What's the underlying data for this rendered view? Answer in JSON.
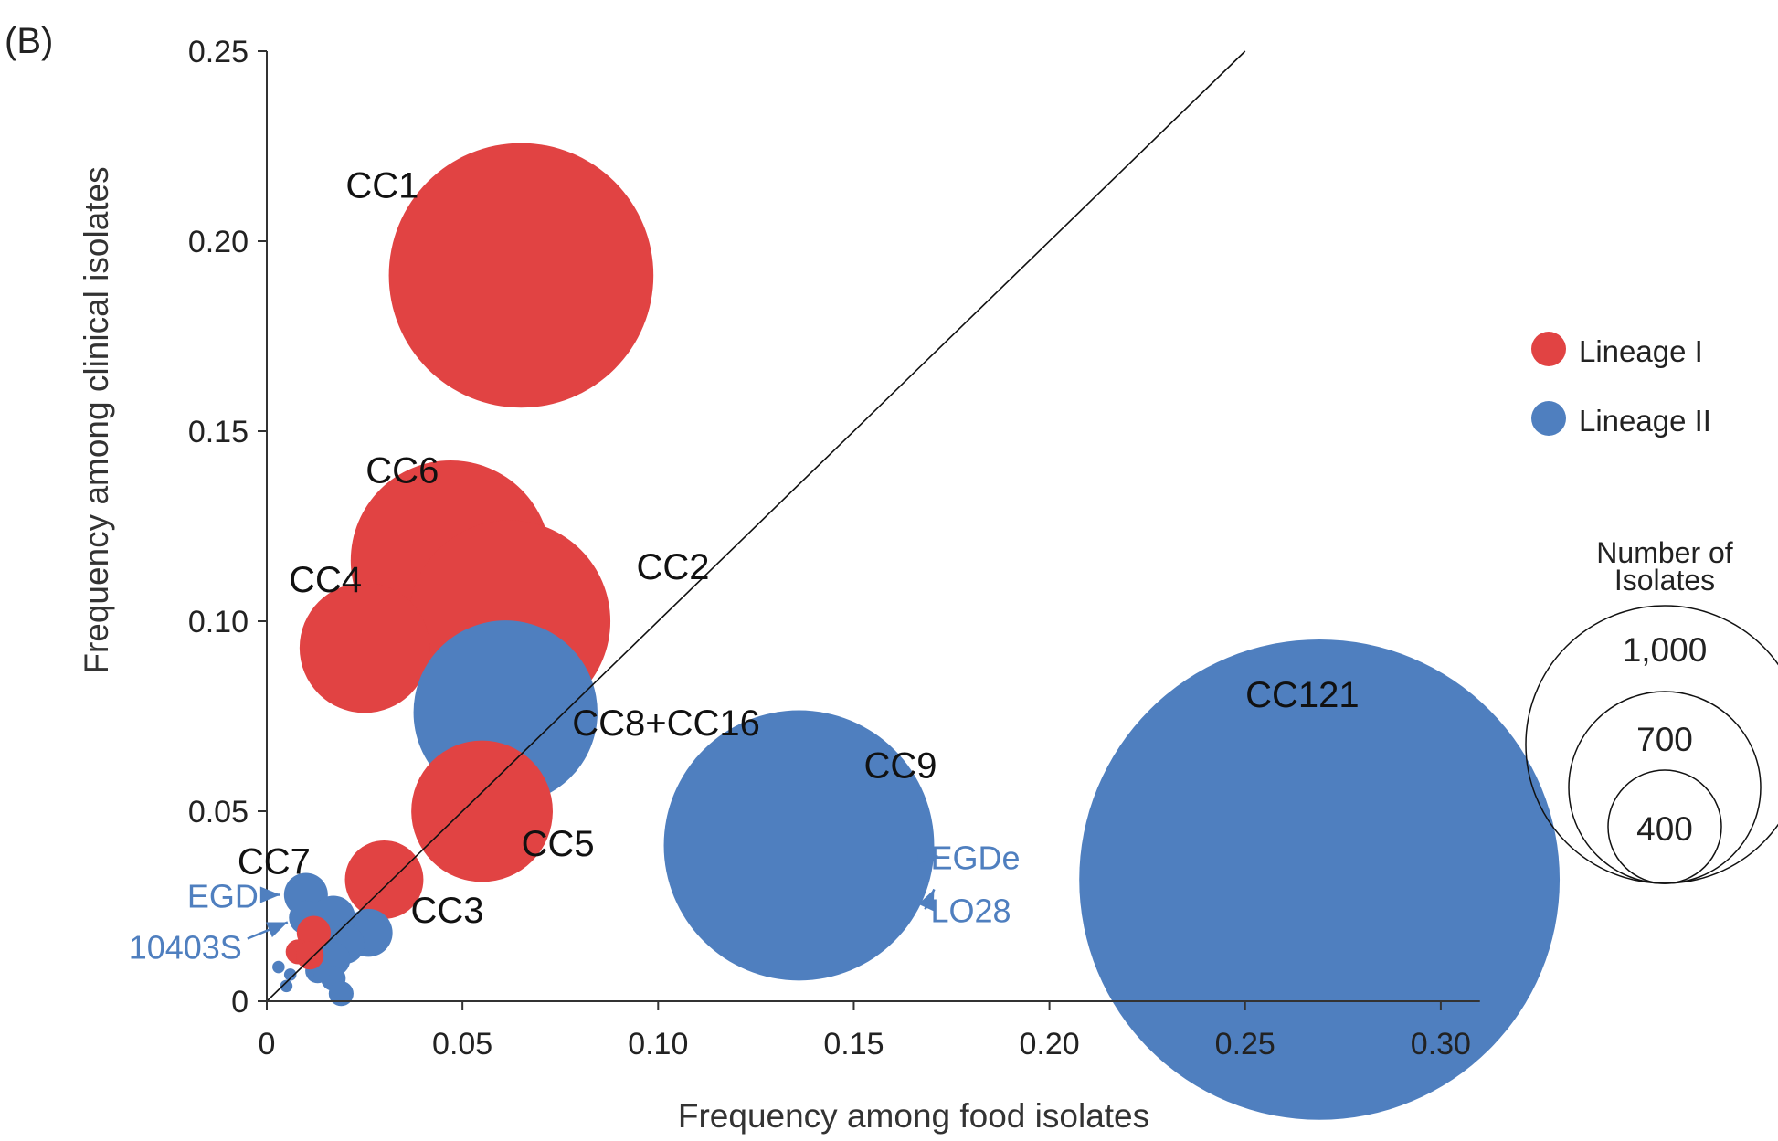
{
  "panel_label": "(B)",
  "chart_data": {
    "type": "scatter",
    "subtype": "bubble",
    "title": "",
    "xlabel": "Frequency among food isolates",
    "ylabel": "Frequency among clinical isolates",
    "xlim": [
      0,
      0.31
    ],
    "ylim": [
      0,
      0.25
    ],
    "xticks": [
      0,
      0.05,
      0.1,
      0.15,
      0.2,
      0.25,
      0.3
    ],
    "xtick_labels": [
      "0",
      "0.05",
      "0.10",
      "0.15",
      "0.20",
      "0.25",
      "0.30"
    ],
    "yticks": [
      0,
      0.05,
      0.1,
      0.15,
      0.2,
      0.25
    ],
    "ytick_labels": [
      "0",
      "0.05",
      "0.10",
      "0.15",
      "0.20",
      "0.25"
    ],
    "grid": false,
    "reference_line": "y = x",
    "colors": {
      "Lineage I": "#e14343",
      "Lineage II": "#4f7fbf",
      "axis": "#333333",
      "annotation": "#4f7fbf"
    },
    "legend": {
      "placement": "right",
      "entries": [
        {
          "name": "Lineage I",
          "color": "#e14343"
        },
        {
          "name": "Lineage II",
          "color": "#4f7fbf"
        }
      ]
    },
    "size_legend": {
      "title_line1": "Number of",
      "title_line2": "Isolates",
      "sizes": [
        {
          "value": 1000,
          "label": "1,000"
        },
        {
          "value": 700,
          "label": "700"
        },
        {
          "value": 400,
          "label": "400"
        }
      ]
    },
    "points": [
      {
        "name": "CC1",
        "lineage": "Lineage I",
        "x": 0.065,
        "y": 0.191,
        "isolates": 910
      },
      {
        "name": "CC6",
        "lineage": "Lineage I",
        "x": 0.047,
        "y": 0.116,
        "isolates": 520
      },
      {
        "name": "CC2",
        "lineage": "Lineage I",
        "x": 0.062,
        "y": 0.1,
        "isolates": 530
      },
      {
        "name": "CC4",
        "lineage": "Lineage I",
        "x": 0.025,
        "y": 0.093,
        "isolates": 220
      },
      {
        "name": "CC8+CC16",
        "lineage": "Lineage II",
        "x": 0.061,
        "y": 0.076,
        "isolates": 440
      },
      {
        "name": "CC5",
        "lineage": "Lineage I",
        "x": 0.055,
        "y": 0.05,
        "isolates": 260
      },
      {
        "name": "CC3",
        "lineage": "Lineage I",
        "x": 0.03,
        "y": 0.032,
        "isolates": 80
      },
      {
        "name": "CC7",
        "lineage": "Lineage II",
        "x": 0.01,
        "y": 0.028,
        "isolates": 25
      },
      {
        "name": "CC9",
        "lineage": "Lineage II",
        "x": 0.136,
        "y": 0.041,
        "isolates": 950
      },
      {
        "name": "CC121",
        "lineage": "Lineage II",
        "x": 0.269,
        "y": 0.032,
        "isolates": 3000
      },
      {
        "name": "",
        "lineage": "Lineage II",
        "x": 0.026,
        "y": 0.018,
        "isolates": 30
      },
      {
        "name": "",
        "lineage": "Lineage II",
        "x": 0.017,
        "y": 0.022,
        "isolates": 25
      },
      {
        "name": "",
        "lineage": "Lineage II",
        "x": 0.01,
        "y": 0.022,
        "isolates": 15
      },
      {
        "name": "",
        "lineage": "Lineage II",
        "x": 0.02,
        "y": 0.015,
        "isolates": 20
      },
      {
        "name": "",
        "lineage": "Lineage II",
        "x": 0.017,
        "y": 0.011,
        "isolates": 15
      },
      {
        "name": "",
        "lineage": "Lineage II",
        "x": 0.013,
        "y": 0.008,
        "isolates": 8
      },
      {
        "name": "",
        "lineage": "Lineage II",
        "x": 0.017,
        "y": 0.006,
        "isolates": 8
      },
      {
        "name": "",
        "lineage": "Lineage II",
        "x": 0.019,
        "y": 0.002,
        "isolates": 8
      },
      {
        "name": "",
        "lineage": "Lineage II",
        "x": 0.006,
        "y": 0.007,
        "isolates": 2
      },
      {
        "name": "",
        "lineage": "Lineage II",
        "x": 0.005,
        "y": 0.004,
        "isolates": 2
      },
      {
        "name": "",
        "lineage": "Lineage II",
        "x": 0.003,
        "y": 0.009,
        "isolates": 2
      },
      {
        "name": "",
        "lineage": "Lineage II",
        "x": 0.014,
        "y": 0.007,
        "isolates": 3
      },
      {
        "name": "",
        "lineage": "Lineage I",
        "x": 0.012,
        "y": 0.018,
        "isolates": 15
      },
      {
        "name": "",
        "lineage": "Lineage I",
        "x": 0.008,
        "y": 0.013,
        "isolates": 8
      },
      {
        "name": "",
        "lineage": "Lineage I",
        "x": 0.011,
        "y": 0.012,
        "isolates": 10
      }
    ],
    "annotations": [
      {
        "text": "EGD",
        "target": "CC7"
      },
      {
        "text": "10403S",
        "target": "CC7"
      },
      {
        "text": "EGDe",
        "target": "CC9"
      },
      {
        "text": "LO28",
        "target": "CC9"
      }
    ]
  }
}
